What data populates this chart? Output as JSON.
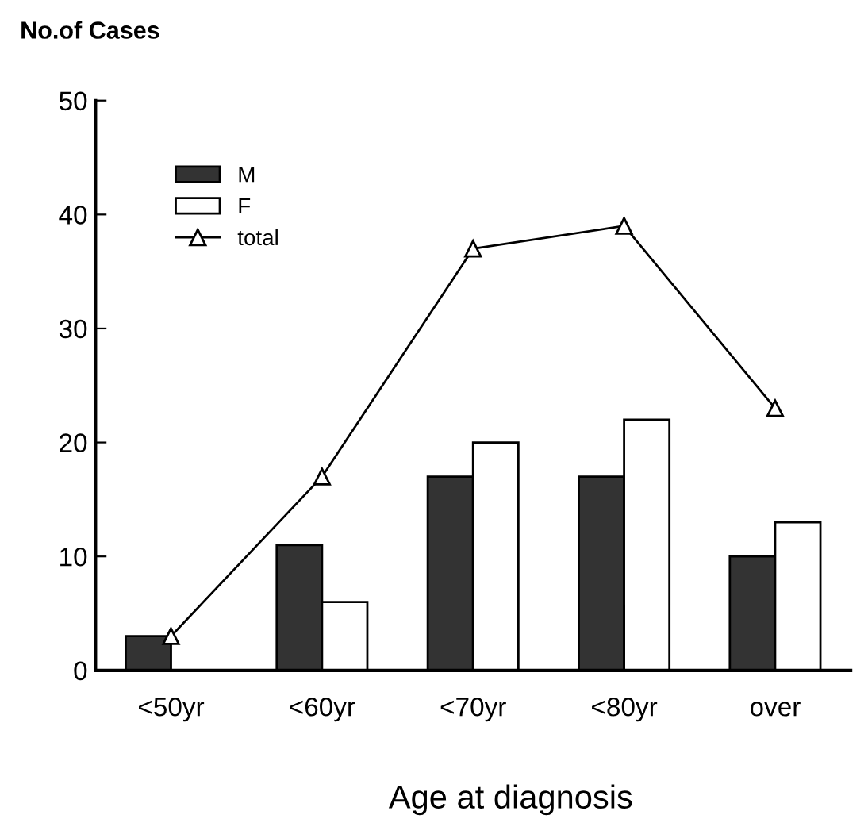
{
  "chart_data": {
    "type": "bar",
    "ylabel": "No.of Cases",
    "xlabel": "Age at diagnosis",
    "categories": [
      "<50yr",
      "<60yr",
      "<70yr",
      "<80yr",
      "over"
    ],
    "series": [
      {
        "name": "M",
        "color": "#333333",
        "values": [
          3,
          11,
          17,
          17,
          10
        ]
      },
      {
        "name": "F",
        "color": "#ffffff",
        "values": [
          0,
          6,
          20,
          22,
          13
        ]
      },
      {
        "name": "total",
        "type": "line",
        "color": "#000000",
        "marker": "triangle",
        "values": [
          3,
          17,
          37,
          39,
          23
        ]
      }
    ],
    "ylim": [
      0,
      50
    ],
    "yticks": [
      0,
      10,
      20,
      30,
      40,
      50
    ],
    "grid": false,
    "legend": "top left"
  }
}
